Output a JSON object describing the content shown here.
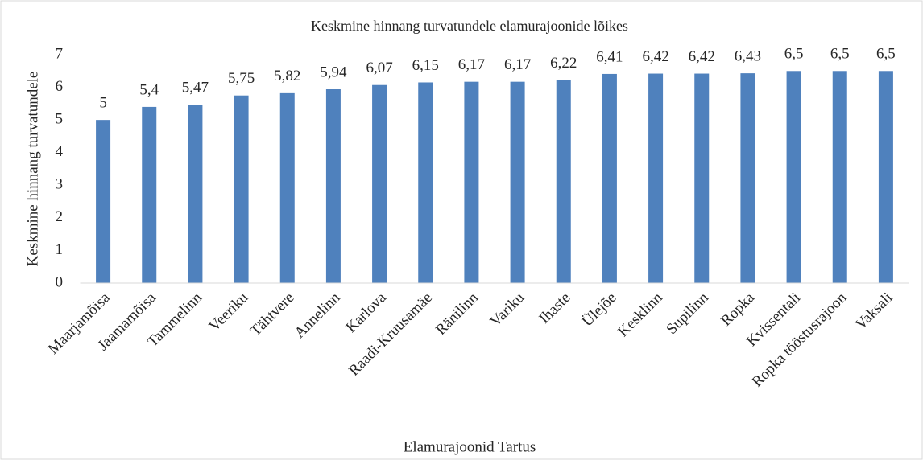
{
  "chart_data": {
    "type": "bar",
    "title": "Keskmine hinnang turvatundele elamurajoonide lõikes",
    "x_label": "Elamurajoonid Tartus",
    "y_label": "Keskmine hinnang turvatundele",
    "categories": [
      "Maarjamõisa",
      "Jaamamõisa",
      "Tammelinn",
      "Veeriku",
      "Tähtvere",
      "Annelinn",
      "Karlova",
      "Raadi-Kruusamäe",
      "Ränilinn",
      "Variku",
      "Ihaste",
      "Ülejõe",
      "Kesklinn",
      "Supilinn",
      "Ropka",
      "Kvissentali",
      "Ropka tööstusrajoon",
      "Vaksali"
    ],
    "values": [
      5,
      5.4,
      5.47,
      5.75,
      5.82,
      5.94,
      6.07,
      6.15,
      6.17,
      6.17,
      6.22,
      6.41,
      6.42,
      6.42,
      6.43,
      6.5,
      6.5,
      6.5
    ],
    "value_labels": [
      "5",
      "5,4",
      "5,47",
      "5,75",
      "5,82",
      "5,94",
      "6,07",
      "6,15",
      "6,17",
      "6,17",
      "6,22",
      "6,41",
      "6,42",
      "6,42",
      "6,43",
      "6,5",
      "6,5",
      "6,5"
    ],
    "color": "#4f81bd",
    "ylim": [
      0,
      7
    ],
    "yticks": [
      0,
      1,
      2,
      3,
      4,
      5,
      6,
      7
    ],
    "grid": false
  }
}
